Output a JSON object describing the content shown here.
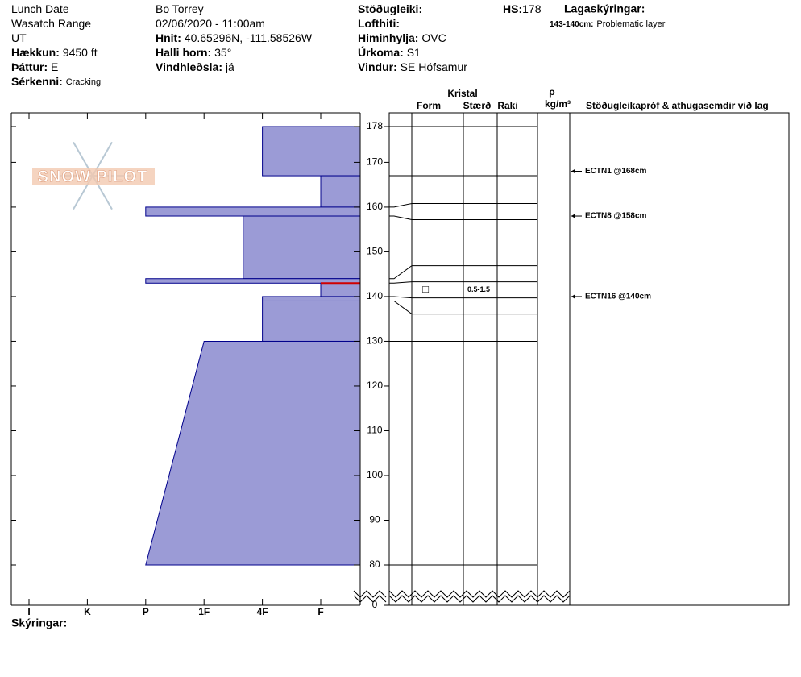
{
  "header": {
    "col1": [
      {
        "value": "Lunch Date"
      },
      {
        "value": "Wasatch Range"
      },
      {
        "value": "UT"
      },
      {
        "key": "Hækkun:",
        "value": "9450 ft"
      },
      {
        "key": "Þáttur:",
        "value": "E"
      },
      {
        "key": "Sérkenni:",
        "value": "Cracking",
        "small": true
      }
    ],
    "col2": [
      {
        "value": "Bo Torrey"
      },
      {
        "value": "02/06/2020 - 11:00am"
      },
      {
        "key": "Hnit:",
        "value": "40.65296N, -111.58526W"
      },
      {
        "key": "Halli horn:",
        "value": "35°"
      },
      {
        "key": "Vindhleðsla:",
        "value": "já"
      }
    ],
    "col3": [
      {
        "key": "Stöðugleiki:"
      },
      {
        "key": "Lofthiti:"
      },
      {
        "key": "Himinhylja:",
        "value": "OVC"
      },
      {
        "key": "Úrkoma:",
        "value": "S1"
      },
      {
        "key": "Vindur:",
        "value": "SE Hófsamur"
      }
    ],
    "hs": {
      "key": "HS:",
      "value": 178
    },
    "legend_title": "Lagaskýringar:",
    "problematic_layer": {
      "label": "143-140cm:",
      "text": "Problematic layer",
      "top": 143,
      "bottom": 140
    }
  },
  "logo": "SNOW PILOT",
  "columns": {
    "crystal": "Kristal",
    "form": "Form",
    "size": "Stærð",
    "moisture": "Raki",
    "rho": "ρ",
    "density_unit": "kg/m³",
    "tests": "Stöðugleikapróf & athugasemdir við lag"
  },
  "depth_range": [
    80,
    178
  ],
  "depth_ticks": [
    80,
    90,
    100,
    110,
    120,
    130,
    140,
    150,
    160,
    170,
    178,
    0
  ],
  "hardness_ticks": [
    {
      "value": 6,
      "label": "I"
    },
    {
      "value": 5,
      "label": "K"
    },
    {
      "value": 4,
      "label": "P"
    },
    {
      "value": 3,
      "label": "1F"
    },
    {
      "value": 2,
      "label": "4F"
    },
    {
      "value": 1,
      "label": "F"
    }
  ],
  "layers": [
    {
      "top": 178,
      "bottom": 167,
      "hardness": 2
    },
    {
      "top": 167,
      "bottom": 160,
      "hardness": 1
    },
    {
      "top": 160,
      "bottom": 158,
      "hardness": 4
    },
    {
      "top": 158,
      "bottom": 144,
      "hardness": 2.33
    },
    {
      "top": 144,
      "bottom": 143,
      "hardness": 4
    },
    {
      "top": 143,
      "bottom": 140,
      "hardness": 1,
      "grain_form": "□",
      "grain_size": "0.5-1.5"
    },
    {
      "top": 140,
      "bottom": 139,
      "hardness": 2
    },
    {
      "top": 139,
      "bottom": 130,
      "hardness": 2
    },
    {
      "top": 130,
      "bottom": 80,
      "hardness": 3,
      "hardness_bottom": 4
    }
  ],
  "tests": [
    {
      "label": "ECTN1 @168cm",
      "depth": 168
    },
    {
      "label": "ECTN8 @158cm",
      "depth": 158
    },
    {
      "label": "ECTN16 @140cm",
      "depth": 140
    }
  ],
  "notes_label": "Skýringar:"
}
